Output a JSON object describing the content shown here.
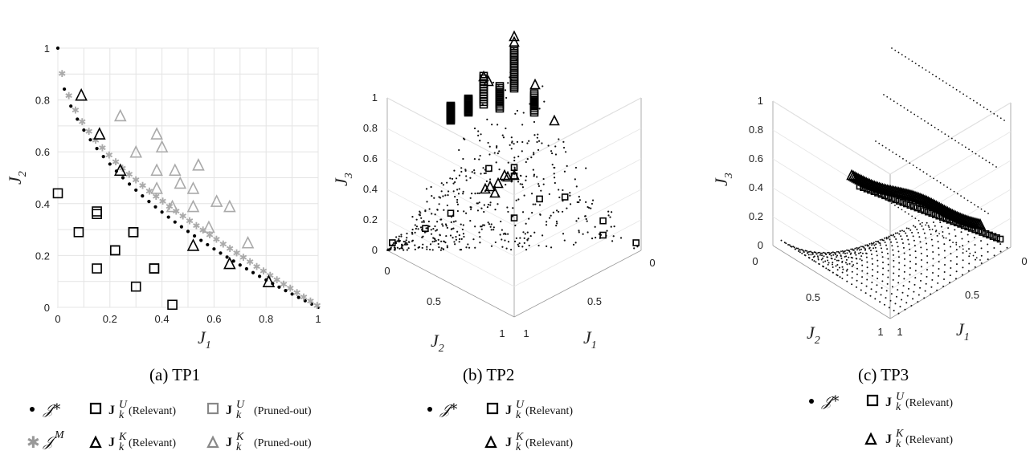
{
  "chart_data": [
    {
      "type": "scatter",
      "caption": "(a) TP1",
      "xlabel": "J",
      "xlabel_sub": "1",
      "ylabel": "J",
      "ylabel_sub": "2",
      "xlim": [
        0,
        1
      ],
      "ylim": [
        0,
        1
      ],
      "xticks": [
        "0",
        "0.2",
        "0.4",
        "0.6",
        "0.8",
        "1"
      ],
      "yticks": [
        "0",
        "0.2",
        "0.4",
        "0.6",
        "0.8",
        "1"
      ],
      "grid": true,
      "series": [
        {
          "name": "𝒥*",
          "marker": "dot",
          "color": "#000000",
          "curve": "J2 = (1 - sqrt(J1))^2 ... approx",
          "points_count": 40
        },
        {
          "name": "𝒥ᴹ",
          "marker": "star",
          "color": "#9a9a9a",
          "points_count": 38
        },
        {
          "name": "J_k^U (Relevant)",
          "marker": "square",
          "color": "#000000",
          "x": [
            0.0,
            0.08,
            0.15,
            0.15,
            0.22,
            0.22,
            0.29,
            0.29,
            0.15,
            0.37,
            0.37,
            0.3,
            0.44
          ],
          "y": [
            0.44,
            0.29,
            0.36,
            0.37,
            0.22,
            0.22,
            0.29,
            0.29,
            0.15,
            0.15,
            0.15,
            0.08,
            0.01
          ]
        },
        {
          "name": "J_k^U (Pruned-out)",
          "marker": "square",
          "color": "#9a9a9a",
          "x": [],
          "y": []
        },
        {
          "name": "J_k^K (Relevant)",
          "marker": "triangle",
          "color": "#000000",
          "x": [
            0.09,
            0.16,
            0.24,
            0.52,
            0.66,
            0.81
          ],
          "y": [
            0.82,
            0.67,
            0.53,
            0.24,
            0.17,
            0.1
          ]
        },
        {
          "name": "J_k^K (Pruned-out)",
          "marker": "triangle",
          "color": "#9a9a9a",
          "x": [
            0.24,
            0.3,
            0.38,
            0.4,
            0.38,
            0.45,
            0.38,
            0.47,
            0.54,
            0.44,
            0.52,
            0.52,
            0.61,
            0.66,
            0.58,
            0.73
          ],
          "y": [
            0.74,
            0.6,
            0.67,
            0.62,
            0.53,
            0.53,
            0.46,
            0.48,
            0.55,
            0.39,
            0.46,
            0.39,
            0.41,
            0.39,
            0.31,
            0.25
          ]
        }
      ]
    },
    {
      "type": "scatter3d",
      "caption": "(b) TP2",
      "xlabel": "J",
      "xlabel_sub": "1",
      "ylabel": "J",
      "ylabel_sub": "2",
      "zlabel": "J",
      "zlabel_sub": "3",
      "zticks": [
        "0",
        "0.2",
        "0.4",
        "0.6",
        "0.8",
        "1"
      ],
      "xticks": [
        "0",
        "0.5",
        "1"
      ],
      "yticks": [
        "0",
        "0.5",
        "1"
      ],
      "series": [
        {
          "name": "𝒥*",
          "marker": "dot"
        },
        {
          "name": "J_k^U (Relevant)",
          "marker": "square"
        },
        {
          "name": "J_k^K (Relevant)",
          "marker": "triangle"
        }
      ]
    },
    {
      "type": "scatter3d",
      "caption": "(c) TP3",
      "xlabel": "J",
      "xlabel_sub": "1",
      "ylabel": "J",
      "ylabel_sub": "2",
      "zlabel": "J",
      "zlabel_sub": "3",
      "zticks": [
        "0",
        "0.2",
        "0.4",
        "0.6",
        "0.8",
        "1"
      ],
      "xticks": [
        "0",
        "0.5",
        "1"
      ],
      "yticks": [
        "0",
        "0.5",
        "1"
      ],
      "series": [
        {
          "name": "𝒥*",
          "marker": "dot"
        },
        {
          "name": "J_k^U (Relevant)",
          "marker": "square"
        },
        {
          "name": "J_k^K (Relevant)",
          "marker": "triangle"
        }
      ]
    }
  ],
  "legend_a": {
    "row1": [
      {
        "sym": "𝒥*",
        "marker": "dot"
      },
      {
        "sym": "J",
        "sup": "U",
        "sub": "k",
        "text": "(Relevant)",
        "marker": "square"
      },
      {
        "sym": "J",
        "sup": "U",
        "sub": "k",
        "text": "(Pruned-out)",
        "marker": "square-gray"
      }
    ],
    "row2": [
      {
        "sym": "𝒥",
        "sup": "M",
        "marker": "star"
      },
      {
        "sym": "J",
        "sup": "K",
        "sub": "k",
        "text": "(Relevant)",
        "marker": "triangle"
      },
      {
        "sym": "J",
        "sup": "K",
        "sub": "k",
        "text": "(Pruned-out)",
        "marker": "triangle-gray"
      }
    ]
  },
  "legend_b": {
    "star_label": "𝒥*",
    "u_text": "(Relevant)",
    "k_text": "(Relevant)"
  },
  "legend_c": {
    "star_label": "𝒥*",
    "u_text": "(Relevant)",
    "k_text": "(Relevant)"
  }
}
